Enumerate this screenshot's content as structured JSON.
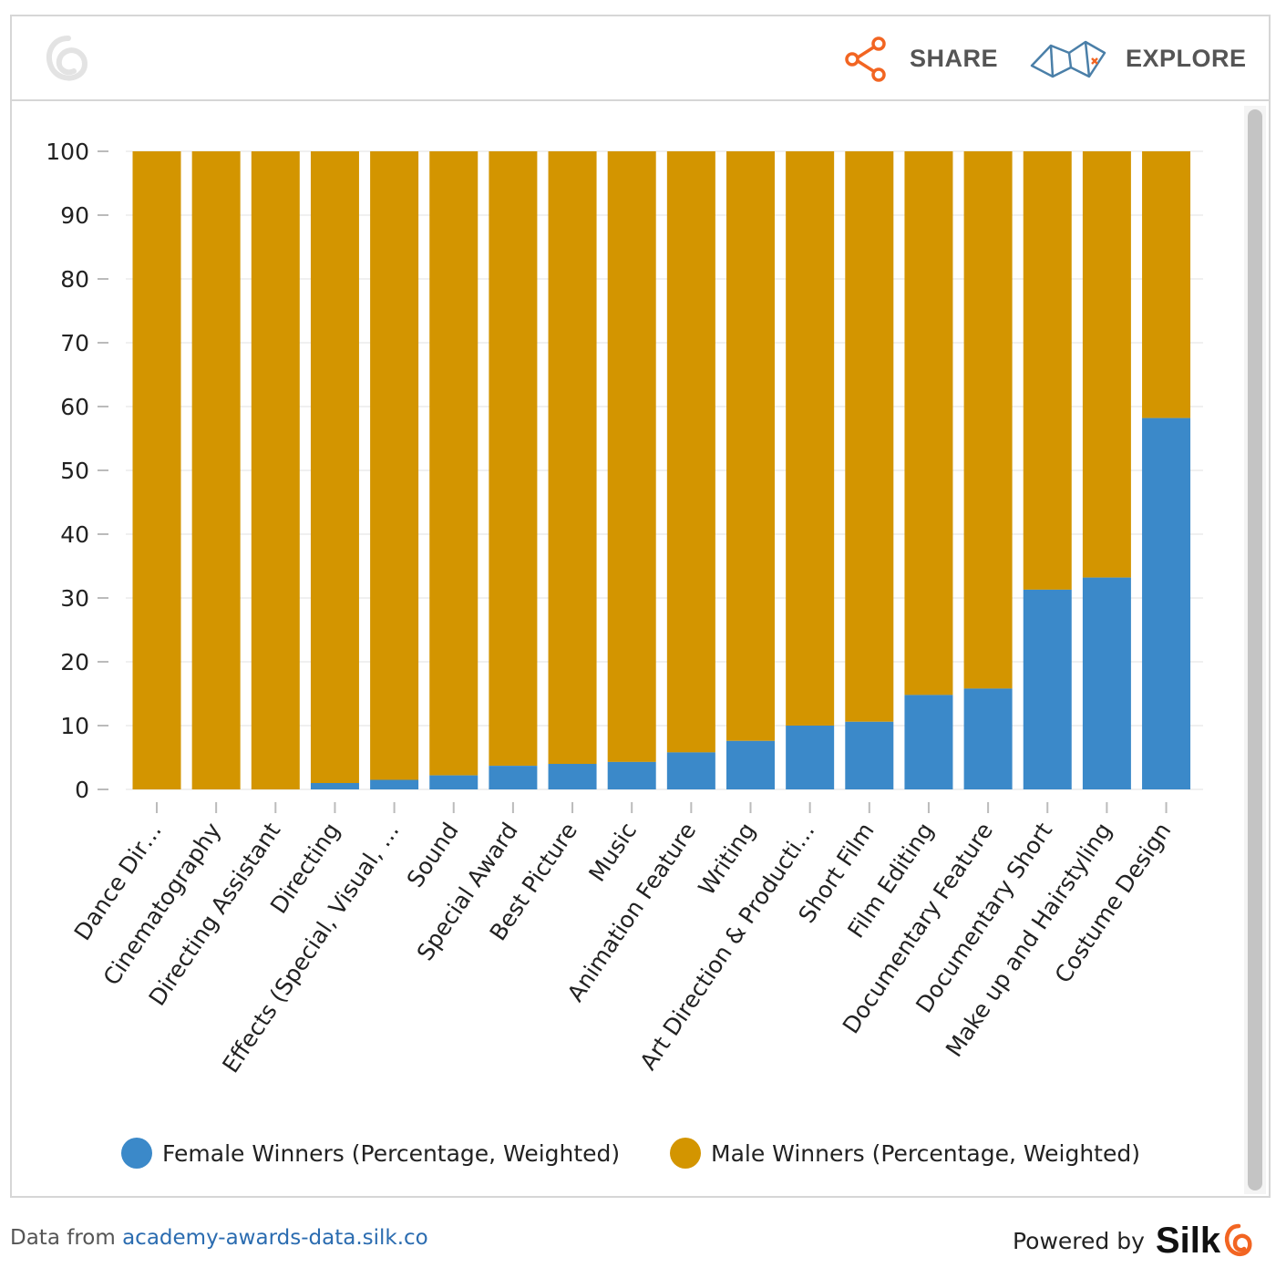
{
  "header": {
    "share_label": "SHARE",
    "explore_label": "EXPLORE"
  },
  "colors": {
    "female": "#3b89c9",
    "male": "#d39500",
    "accent": "#f26522"
  },
  "chart_data": {
    "type": "bar",
    "stacked": true,
    "categories": [
      "Dance Dir…",
      "Cinematography",
      "Directing Assistant",
      "Directing",
      "Effects (Special, Visual, …",
      "Sound",
      "Special Award",
      "Best Picture",
      "Music",
      "Animation Feature",
      "Writing",
      "Art Direction & Producti…",
      "Short Film",
      "Film Editing",
      "Documentary Feature",
      "Documentary Short",
      "Make up and Hairstyling",
      "Costume Design"
    ],
    "series": [
      {
        "name": "Female Winners (Percentage, Weighted)",
        "values": [
          0,
          0,
          0,
          1.0,
          1.5,
          2.2,
          3.7,
          4.0,
          4.3,
          5.8,
          7.6,
          10.0,
          10.6,
          14.8,
          15.8,
          31.3,
          33.2,
          58.2
        ]
      },
      {
        "name": "Male Winners (Percentage, Weighted)",
        "values": [
          100,
          100,
          100,
          99.0,
          98.5,
          97.8,
          96.3,
          96.0,
          95.7,
          94.2,
          92.4,
          90.0,
          89.4,
          85.2,
          84.2,
          68.7,
          66.8,
          41.8
        ]
      }
    ],
    "ylim": [
      0,
      100
    ],
    "yticks": [
      0,
      10,
      20,
      30,
      40,
      50,
      60,
      70,
      80,
      90,
      100
    ],
    "grid": true,
    "legend_position": "bottom"
  },
  "footer": {
    "source_prefix": "Data from",
    "source_link": "academy-awards-data.silk.co",
    "powered_by": "Powered by",
    "brand": "Silk"
  }
}
